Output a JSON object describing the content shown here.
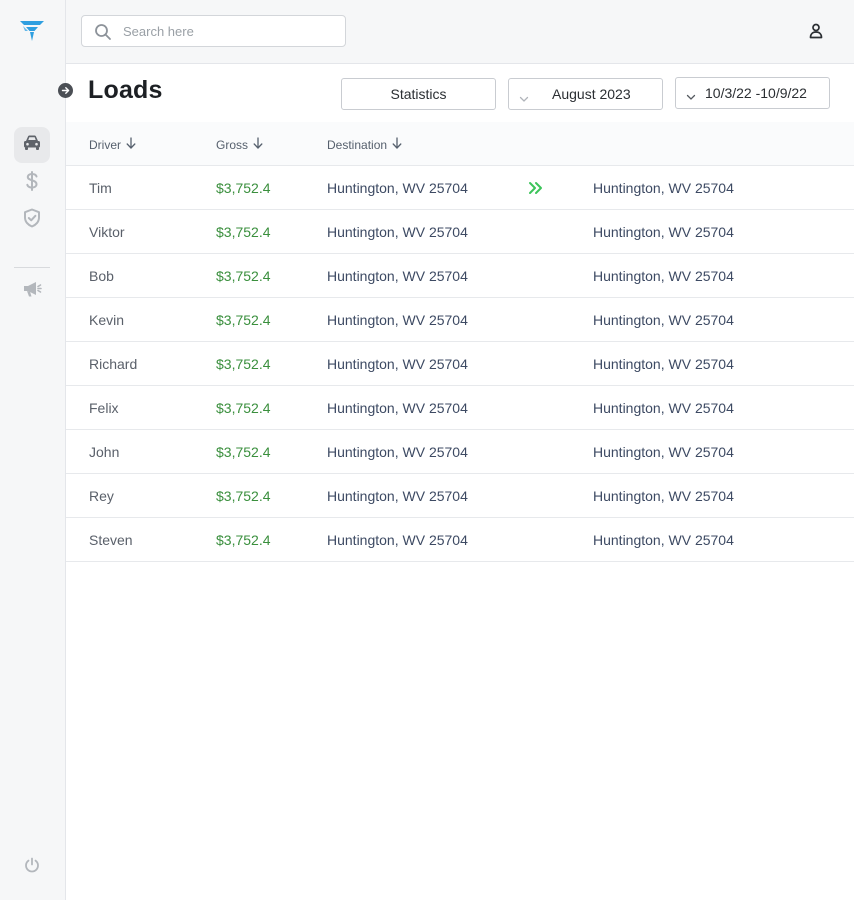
{
  "search": {
    "placeholder": "Search here"
  },
  "page": {
    "title": "Loads"
  },
  "controls": {
    "statistics_label": "Statistics",
    "month_label": "August 2023",
    "range_label": "10/3/22 -10/9/22"
  },
  "table": {
    "columns": [
      "Driver",
      "Gross",
      "Destination"
    ],
    "rows": [
      {
        "driver": "Tim",
        "gross": "$3,752.4",
        "destination": "Huntington, WV 25704",
        "destination2": "Huntington, WV 25704",
        "arrow": true
      },
      {
        "driver": "Viktor",
        "gross": "$3,752.4",
        "destination": "Huntington, WV 25704",
        "destination2": "Huntington, WV 25704",
        "arrow": false
      },
      {
        "driver": "Bob",
        "gross": "$3,752.4",
        "destination": "Huntington, WV 25704",
        "destination2": "Huntington, WV 25704",
        "arrow": false
      },
      {
        "driver": "Kevin",
        "gross": "$3,752.4",
        "destination": "Huntington, WV 25704",
        "destination2": "Huntington, WV 25704",
        "arrow": false
      },
      {
        "driver": "Richard",
        "gross": "$3,752.4",
        "destination": "Huntington, WV 25704",
        "destination2": "Huntington, WV 25704",
        "arrow": false
      },
      {
        "driver": "Felix",
        "gross": "$3,752.4",
        "destination": "Huntington, WV 25704",
        "destination2": "Huntington, WV 25704",
        "arrow": false
      },
      {
        "driver": "John",
        "gross": "$3,752.4",
        "destination": "Huntington, WV 25704",
        "destination2": "Huntington, WV 25704",
        "arrow": false
      },
      {
        "driver": "Rey",
        "gross": "$3,752.4",
        "destination": "Huntington, WV 25704",
        "destination2": "Huntington, WV 25704",
        "arrow": false
      },
      {
        "driver": "Steven",
        "gross": "$3,752.4",
        "destination": "Huntington, WV 25704",
        "destination2": "Huntington, WV 25704",
        "arrow": false
      }
    ]
  },
  "sidebar": {
    "items": [
      {
        "icon": "car-icon",
        "active": true
      },
      {
        "icon": "dollar-icon",
        "active": false
      },
      {
        "icon": "shield-check-icon",
        "active": false
      },
      {
        "icon": "megaphone-icon",
        "active": false
      }
    ],
    "footer_icon": "power-icon"
  },
  "colors": {
    "accent": "#2f9fe0",
    "gross": "#3a8f3d",
    "arrow": "#3cc45a",
    "destination": "#3d4a63"
  }
}
